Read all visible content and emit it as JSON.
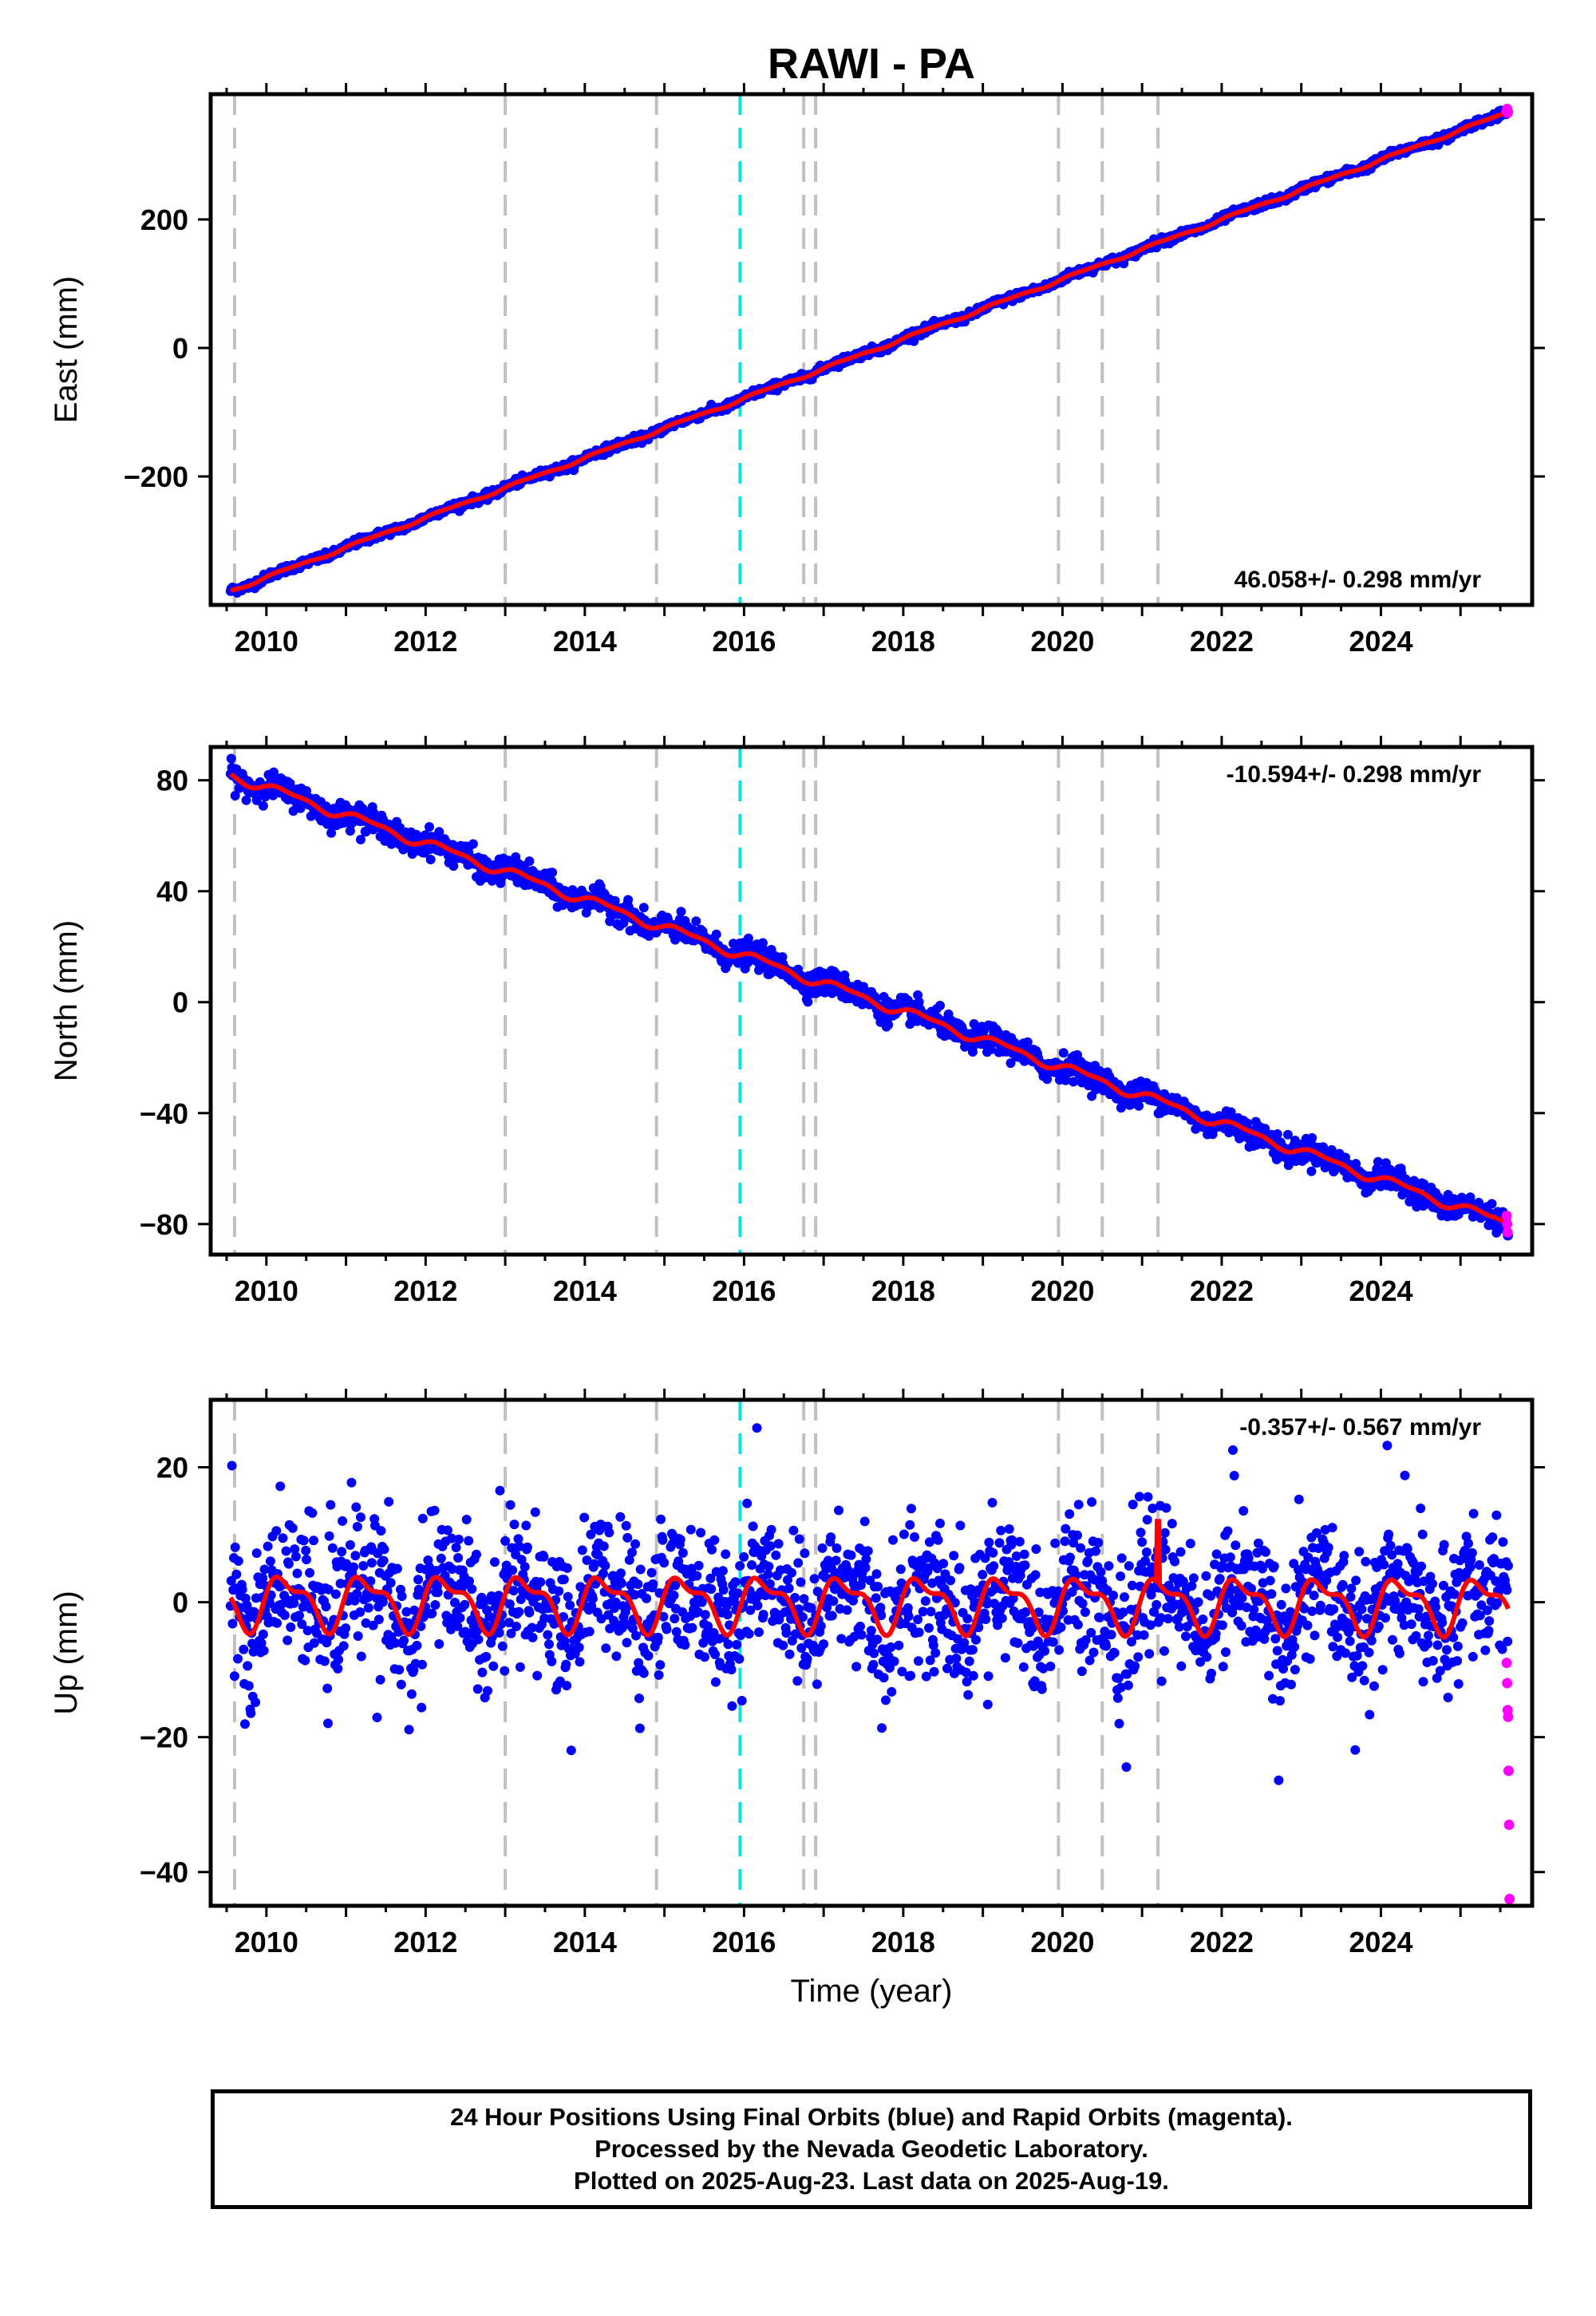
{
  "title": "RAWI - PA",
  "footer": {
    "line1": "24 Hour Positions Using Final Orbits (blue) and Rapid Orbits (magenta).",
    "line2": "Processed by the Nevada Geodetic Laboratory.",
    "line3": "Plotted on 2025-Aug-23. Last data on 2025-Aug-19."
  },
  "colors": {
    "final": "#0000ff",
    "rapid": "#ff00ff",
    "model": "#ff0000",
    "steps": "#c0c0c0",
    "antenna_change": "#00e5ee"
  },
  "chart_data": [
    {
      "type": "scatter",
      "panel": "east",
      "ylabel": "East (mm)",
      "xlabel": "",
      "xlim": [
        2009.3,
        2025.9
      ],
      "ylim": [
        -400,
        395
      ],
      "yticks": [
        -200,
        0,
        200
      ],
      "xticks": [
        2010,
        2012,
        2014,
        2016,
        2018,
        2020,
        2022,
        2024
      ],
      "rate_text": "46.058+/- 0.298 mm/yr",
      "rate_position": "bottom-right",
      "model": {
        "start_year": 2009.55,
        "end_year": 2025.6,
        "start_value": -378,
        "end_value": 367,
        "seasonal_amplitude": 2.0,
        "noise": 3
      },
      "rapid_values": [
        368,
        372,
        366
      ]
    },
    {
      "type": "scatter",
      "panel": "north",
      "ylabel": "North (mm)",
      "xlabel": "",
      "xlim": [
        2009.3,
        2025.9
      ],
      "ylim": [
        -91,
        92
      ],
      "yticks": [
        -80,
        -40,
        0,
        40,
        80
      ],
      "xticks": [
        2010,
        2012,
        2014,
        2016,
        2018,
        2020,
        2022,
        2024
      ],
      "rate_text": "-10.594+/- 0.298 mm/yr",
      "rate_position": "top-right",
      "model": {
        "start_year": 2009.55,
        "end_year": 2025.6,
        "start_value": 82,
        "end_value": -80,
        "seasonal_amplitude": 1.5,
        "noise": 2.2
      },
      "rapid_values": [
        -77,
        -80,
        -83
      ]
    },
    {
      "type": "scatter",
      "panel": "up",
      "ylabel": "Up (mm)",
      "xlabel": "Time (year)",
      "xlim": [
        2009.3,
        2025.9
      ],
      "ylim": [
        -45,
        30
      ],
      "yticks": [
        -40,
        -20,
        0,
        20
      ],
      "xticks": [
        2010,
        2012,
        2014,
        2016,
        2018,
        2020,
        2022,
        2024
      ],
      "rate_text": "-0.357+/- 0.567 mm/yr",
      "rate_position": "top-right",
      "model": {
        "start_year": 2009.55,
        "end_year": 2025.6,
        "start_value": 0.2,
        "end_value": -0.3,
        "seasonal_amplitude": 3.5,
        "noise": 5
      },
      "rapid_values": [
        -9,
        -12,
        -16,
        -17,
        -25,
        -33,
        -44
      ]
    }
  ],
  "event_lines": {
    "gray_years": [
      2009.6,
      2013.0,
      2014.9,
      2016.75,
      2016.9,
      2019.95,
      2020.5,
      2021.2
    ],
    "cyan_years": [
      2015.95
    ]
  }
}
